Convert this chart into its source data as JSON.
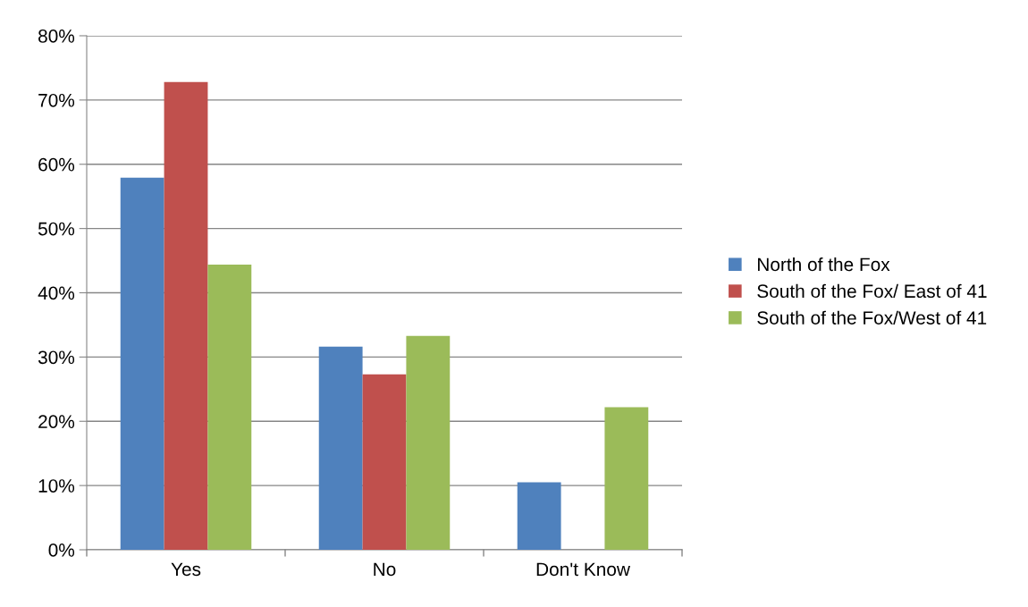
{
  "chart_data": {
    "type": "bar",
    "categories": [
      "Yes",
      "No",
      "Don't Know"
    ],
    "series": [
      {
        "name": "North of the Fox",
        "color": "#4f81bd",
        "values": [
          57.9,
          31.6,
          10.5
        ]
      },
      {
        "name": "South of the Fox/ East of 41",
        "color": "#c0504d",
        "values": [
          72.8,
          27.3,
          0
        ]
      },
      {
        "name": "South of the Fox/West of 41",
        "color": "#9bbb59",
        "values": [
          44.4,
          33.3,
          22.2
        ]
      }
    ],
    "ylim": [
      0,
      80
    ],
    "yticks": [
      {
        "value": 0,
        "label": "0%"
      },
      {
        "value": 10,
        "label": "10%"
      },
      {
        "value": 20,
        "label": "20%"
      },
      {
        "value": 30,
        "label": "30%"
      },
      {
        "value": 40,
        "label": "40%"
      },
      {
        "value": 50,
        "label": "50%"
      },
      {
        "value": 60,
        "label": "60%"
      },
      {
        "value": 70,
        "label": "70%"
      },
      {
        "value": 80,
        "label": "80%"
      }
    ],
    "grid": "y",
    "legend": "right"
  }
}
